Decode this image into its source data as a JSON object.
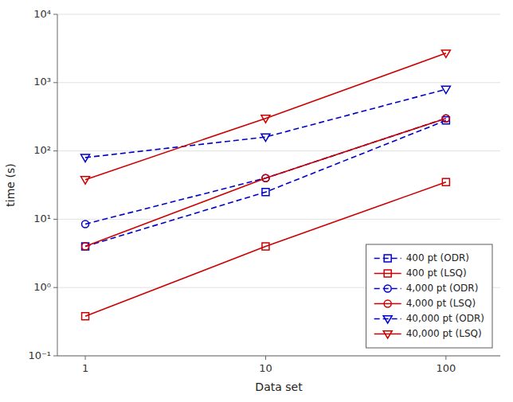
{
  "chart_data": {
    "type": "line",
    "x": [
      1,
      10,
      100
    ],
    "series": [
      {
        "name": "  400 pt (ODR)",
        "color": "#0000cc",
        "line_style": "dashed",
        "marker": "square",
        "values": [
          4.0,
          25.0,
          280.0
        ]
      },
      {
        "name": "  400 pt (LSQ)",
        "color": "#cc0000",
        "line_style": "solid",
        "marker": "square",
        "values": [
          0.38,
          4.0,
          35.0
        ]
      },
      {
        "name": "  4,000 pt (ODR)",
        "color": "#0000cc",
        "line_style": "dashed",
        "marker": "circle",
        "values": [
          8.5,
          40.0,
          300.0
        ]
      },
      {
        "name": "  4,000 pt (LSQ)",
        "color": "#cc0000",
        "line_style": "solid",
        "marker": "circle",
        "values": [
          4.0,
          40.0,
          300.0
        ]
      },
      {
        "name": "  40,000 pt (ODR)",
        "color": "#0000cc",
        "line_style": "dashed",
        "marker": "triangle-down",
        "values": [
          80.0,
          160.0,
          800.0
        ]
      },
      {
        "name": "  40,000 pt (LSQ)",
        "color": "#cc0000",
        "line_style": "solid",
        "marker": "triangle-down",
        "values": [
          38.0,
          300.0,
          2700.0
        ]
      }
    ],
    "x_label": "Data set",
    "y_label": "time (s)",
    "xlim": [
      0.7,
      200
    ],
    "ylim": [
      0.1,
      10000
    ],
    "xticks": [
      1,
      10,
      100
    ],
    "yticks": [
      {
        "value": 0.1,
        "label": "10⁻¹"
      },
      {
        "value": 1,
        "label": "10⁰"
      },
      {
        "value": 10,
        "label": "10¹"
      },
      {
        "value": 100,
        "label": "10²"
      },
      {
        "value": 1000,
        "label": "10³"
      },
      {
        "value": 10000,
        "label": "10⁴"
      }
    ],
    "log": true,
    "grid": true,
    "legend": "lower-right"
  }
}
